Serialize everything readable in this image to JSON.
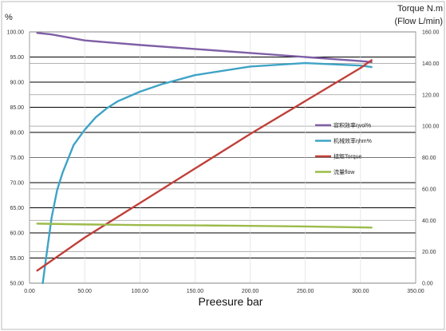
{
  "chart_data": {
    "type": "line",
    "xlabel": "Preesure bar",
    "ylabel_left": "%",
    "ylabel_right_line1": "Torque N.m",
    "ylabel_right_line2": "(Flow L/min)",
    "xlim": [
      0,
      350
    ],
    "ylim_left": [
      50,
      100
    ],
    "ylim_right": [
      0,
      160
    ],
    "x_ticks": [
      "0.00",
      "50.00",
      "100.00",
      "150.00",
      "200.00",
      "250.00",
      "300.00",
      "350.00"
    ],
    "y_left_ticks": [
      "50.00",
      "55.00",
      "60.00",
      "65.00",
      "70.00",
      "75.00",
      "80.00",
      "85.00",
      "90.00",
      "95.00",
      "100.00"
    ],
    "y_right_ticks": [
      "0.00",
      "20.00",
      "40.00",
      "60.00",
      "80.00",
      "100.00",
      "120.00",
      "140.00",
      "160.00"
    ],
    "grid": true,
    "legend_position": "right",
    "series": [
      {
        "name": "容积效率ηvol%",
        "axis": "left",
        "color": "#7f5fa6",
        "x": [
          7,
          20,
          50,
          100,
          150,
          200,
          250,
          300,
          310
        ],
        "y": [
          99.8,
          99.5,
          98.3,
          97.4,
          96.6,
          95.8,
          95.0,
          94.2,
          94.0
        ]
      },
      {
        "name": "机械效率ηhm%",
        "axis": "left",
        "color": "#3fa3c6",
        "x": [
          12,
          15,
          20,
          25,
          30,
          40,
          50,
          60,
          70,
          80,
          100,
          120,
          150,
          200,
          250,
          300,
          310
        ],
        "y": [
          50.0,
          55.0,
          63.0,
          68.5,
          72.0,
          77.5,
          80.5,
          83.0,
          84.8,
          86.2,
          88.1,
          89.6,
          91.4,
          93.1,
          93.8,
          93.3,
          93.0
        ]
      },
      {
        "name": "扭矩Torque",
        "axis": "right",
        "color": "#c0403a",
        "x": [
          7,
          50,
          100,
          150,
          200,
          250,
          300,
          310
        ],
        "y": [
          8,
          29,
          51,
          73,
          95,
          116,
          137,
          142
        ]
      },
      {
        "name": "流量flow",
        "axis": "right",
        "color": "#9cbb4a",
        "x": [
          7,
          50,
          100,
          150,
          200,
          250,
          300,
          310
        ],
        "y": [
          37.9,
          37.4,
          37.0,
          36.8,
          36.5,
          36.1,
          35.5,
          35.4
        ]
      }
    ]
  }
}
